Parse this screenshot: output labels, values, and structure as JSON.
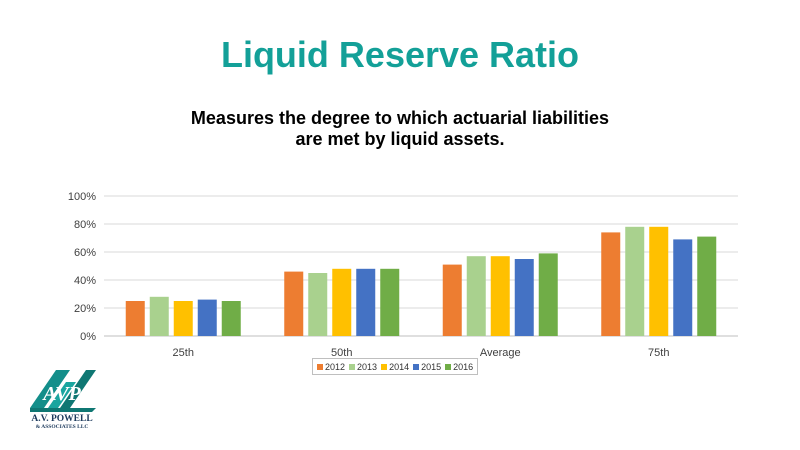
{
  "slide": {
    "title": "Liquid Reserve Ratio",
    "subtitle_line1": "Measures the degree to which actuarial liabilities",
    "subtitle_line2": "are met by liquid assets."
  },
  "logo": {
    "text_line1": "A.V. POWELL",
    "text_line2": "& ASSOCIATES LLC",
    "icon": "avp-logo-icon"
  },
  "chart_data": {
    "type": "bar",
    "title": "",
    "xlabel": "",
    "ylabel": "",
    "categories": [
      "25th",
      "50th",
      "Average",
      "75th"
    ],
    "ylim": [
      0,
      100
    ],
    "yticks": [
      "0%",
      "20%",
      "40%",
      "60%",
      "80%",
      "100%"
    ],
    "grid": true,
    "legend_position": "bottom",
    "series": [
      {
        "name": "2012",
        "color": "#ed7d31",
        "values": [
          25,
          46,
          51,
          74
        ]
      },
      {
        "name": "2013",
        "color": "#a9d18e",
        "values": [
          28,
          45,
          57,
          78
        ]
      },
      {
        "name": "2014",
        "color": "#ffc000",
        "values": [
          25,
          48,
          57,
          78
        ]
      },
      {
        "name": "2015",
        "color": "#4472c4",
        "values": [
          26,
          48,
          55,
          69
        ]
      },
      {
        "name": "2016",
        "color": "#70ad47",
        "values": [
          25,
          48,
          59,
          71
        ]
      }
    ]
  }
}
